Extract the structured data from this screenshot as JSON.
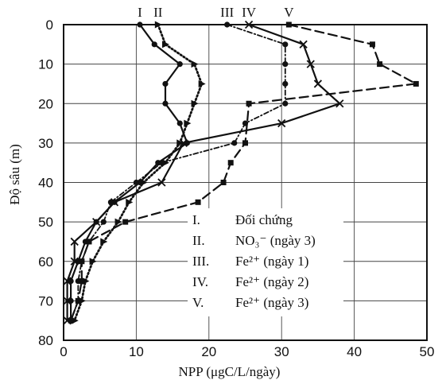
{
  "chart_data": {
    "type": "line",
    "title": "",
    "xlabel": "NPP (μgC/L/ngày)",
    "ylabel": "Độ sâu (m)",
    "xlim": [
      0,
      50
    ],
    "ylim": [
      0,
      80
    ],
    "y_inverted": true,
    "x_axis_position": "bottom",
    "x_ticks": [
      "0",
      "10",
      "20",
      "30",
      "40",
      "50"
    ],
    "y_ticks": [
      "0",
      "10",
      "20",
      "30",
      "40",
      "50",
      "60",
      "70",
      "80"
    ],
    "grid": true,
    "legend_position": "bottom-right",
    "series": [
      {
        "label": "I",
        "legend_numeral": "I.",
        "legend_text": "Đối chứng",
        "marker": "circle",
        "line_style": "solid",
        "points": [
          [
            10.5,
            0
          ],
          [
            12.5,
            5
          ],
          [
            16,
            10
          ],
          [
            14,
            15
          ],
          [
            14,
            20
          ],
          [
            16,
            25
          ],
          [
            17,
            30
          ],
          [
            13,
            35
          ],
          [
            10.5,
            40
          ],
          [
            7,
            45
          ],
          [
            4.5,
            50
          ],
          [
            3,
            55
          ],
          [
            2,
            60
          ],
          [
            1,
            65
          ],
          [
            1,
            70
          ],
          [
            1,
            75
          ]
        ]
      },
      {
        "label": "II",
        "legend_numeral": "II.",
        "legend_text": "NO₃⁻ (ngày 3)",
        "marker": "triangle",
        "line_style": "dotted",
        "points": [
          [
            13,
            0
          ],
          [
            14,
            5
          ],
          [
            18,
            10
          ],
          [
            19,
            15
          ],
          [
            18,
            20
          ],
          [
            17,
            25
          ],
          [
            16,
            30
          ],
          [
            14,
            35
          ],
          [
            11,
            40
          ],
          [
            9,
            45
          ],
          [
            7.5,
            50
          ],
          [
            5.5,
            55
          ],
          [
            4,
            60
          ],
          [
            3,
            65
          ],
          [
            2.5,
            70
          ],
          [
            1.5,
            75
          ]
        ]
      },
      {
        "label": "III",
        "legend_numeral": "III.",
        "legend_text": "Fe²⁺ (ngày 1)",
        "marker": "circle",
        "line_style": "dashdot",
        "points": [
          [
            22.5,
            0
          ],
          [
            30.5,
            5
          ],
          [
            30.5,
            10
          ],
          [
            30.5,
            15
          ],
          [
            30.5,
            20
          ],
          [
            25,
            25
          ],
          [
            23.5,
            30
          ],
          [
            13.5,
            35
          ],
          [
            10,
            40
          ],
          [
            6.5,
            45
          ],
          [
            5.5,
            50
          ],
          [
            3.5,
            55
          ],
          [
            2.5,
            60
          ],
          [
            2,
            65
          ],
          [
            2,
            70
          ],
          [
            1,
            75
          ]
        ]
      },
      {
        "label": "IV",
        "legend_numeral": "IV.",
        "legend_text": "Fe²⁺ (ngày 2)",
        "marker": "x",
        "line_style": "solid",
        "points": [
          [
            25.5,
            0
          ],
          [
            33,
            5
          ],
          [
            34,
            10
          ],
          [
            35,
            15
          ],
          [
            38,
            20
          ],
          [
            30,
            25
          ],
          [
            16.5,
            30
          ],
          [
            13.5,
            40
          ],
          [
            7,
            45
          ],
          [
            4.5,
            50
          ],
          [
            1.5,
            55
          ],
          [
            1.5,
            60
          ],
          [
            0.5,
            65
          ],
          [
            0.5,
            70
          ],
          [
            0.5,
            75
          ]
        ]
      },
      {
        "label": "V",
        "legend_numeral": "V.",
        "legend_text": "Fe²⁺ (ngày 3)",
        "marker": "square",
        "line_style": "dashed",
        "points": [
          [
            31,
            0
          ],
          [
            42.5,
            5
          ],
          [
            43.5,
            10
          ],
          [
            48.5,
            15
          ],
          [
            25.5,
            20
          ],
          [
            25,
            30
          ],
          [
            23,
            35
          ],
          [
            22,
            40
          ],
          [
            18.5,
            45
          ],
          [
            8.5,
            50
          ],
          [
            3.5,
            55
          ],
          [
            2.5,
            60
          ],
          [
            2.5,
            65
          ],
          [
            2,
            70
          ],
          [
            1,
            75
          ]
        ]
      }
    ]
  }
}
